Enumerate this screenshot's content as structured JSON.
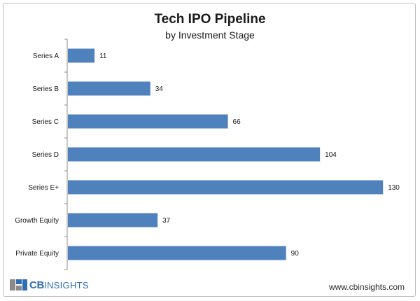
{
  "chart_data": {
    "type": "bar",
    "orientation": "horizontal",
    "title": "Tech IPO Pipeline",
    "subtitle": "by Investment Stage",
    "categories": [
      "Series A",
      "Series B",
      "Series C",
      "Series D",
      "Series E+",
      "Growth Equity",
      "Private Equity"
    ],
    "values": [
      11,
      34,
      66,
      104,
      130,
      37,
      90
    ],
    "data_labels": [
      "11",
      "34",
      "66",
      "104",
      "130",
      "37",
      "90"
    ],
    "xlim": [
      0,
      145
    ],
    "grid": false,
    "legend": "none",
    "bar_color": "#4f81bd"
  },
  "footer": {
    "logo_strong": "CB",
    "logo_light": "INSIGHTS",
    "website": "www.cbinsights.com"
  },
  "colors": {
    "logo_blue": "#2f6db3",
    "logo_gray": "#8a8a8a"
  }
}
